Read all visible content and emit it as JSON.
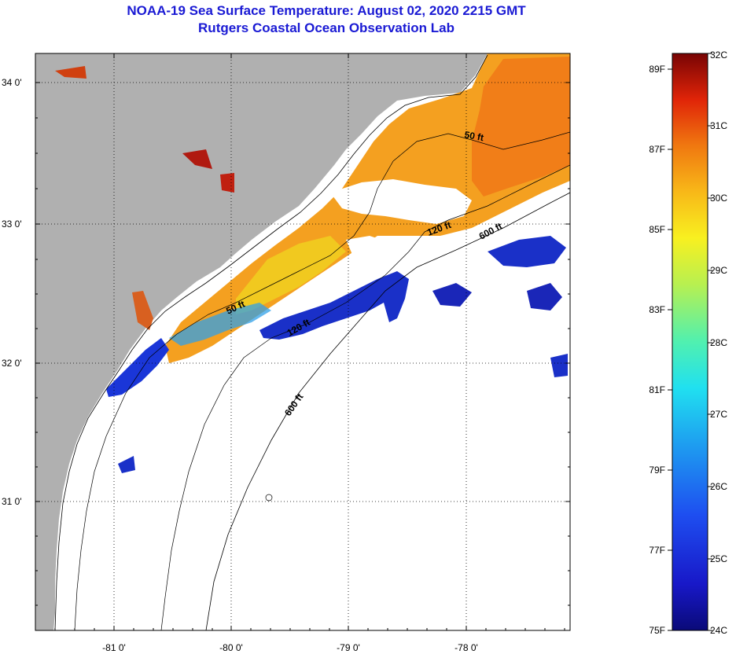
{
  "header": {
    "title": "NOAA-19 Sea Surface Temperature:  August 02, 2020 2215 GMT",
    "subtitle": "Rutgers Coastal Ocean Observation Lab"
  },
  "map": {
    "lat_labels": [
      "34 0'",
      "33 0'",
      "32 0'",
      "31 0'"
    ],
    "lon_labels": [
      "-81 0'",
      "-80 0'",
      "-79 0'",
      "-78 0'"
    ],
    "contour_labels": [
      "50 ft",
      "120 ft",
      "600 ft",
      "50 ft",
      "120 ft",
      "600 ft"
    ]
  },
  "colorbar": {
    "fahrenheit": [
      "89F",
      "87F",
      "85F",
      "83F",
      "81F",
      "79F",
      "77F",
      "75F"
    ],
    "celsius": [
      "32C",
      "31C",
      "30C",
      "29C",
      "28C",
      "27C",
      "26C",
      "25C",
      "24C"
    ],
    "colors": [
      "#0a0f8a",
      "#1d2fd6",
      "#1e6ef0",
      "#22c8e6",
      "#5be08a",
      "#e8f028",
      "#f8b418",
      "#f07010",
      "#d81c08",
      "#7a0606"
    ]
  }
}
